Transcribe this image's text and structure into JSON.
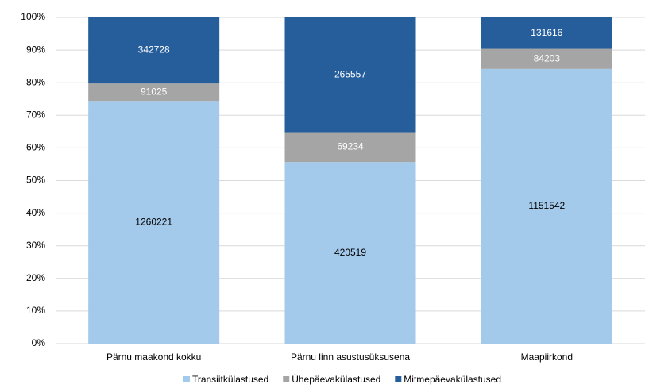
{
  "chart_data": {
    "type": "bar",
    "stacking": "percent",
    "categories": [
      "Pärnu maakond kokku",
      "Pärnu linn asustusüksusena",
      "Maapiirkond"
    ],
    "series": [
      {
        "name": "Transiitkülastused",
        "color": "#a3c9eb",
        "label_color": "#000000",
        "values": [
          1260221,
          420519,
          1151542
        ]
      },
      {
        "name": "Ühepäevakülastused",
        "color": "#a5a5a5",
        "label_color": "#ffffff",
        "values": [
          91025,
          69234,
          84203
        ]
      },
      {
        "name": "Mitmepäevakülastused",
        "color": "#255e9b",
        "label_color": "#ffffff",
        "values": [
          342728,
          265557,
          131616
        ]
      }
    ],
    "ylim": [
      0,
      100
    ],
    "yticks": [
      {
        "value": 0,
        "label": "0%"
      },
      {
        "value": 10,
        "label": "10%"
      },
      {
        "value": 20,
        "label": "20%"
      },
      {
        "value": 30,
        "label": "30%"
      },
      {
        "value": 40,
        "label": "40%"
      },
      {
        "value": 50,
        "label": "50%"
      },
      {
        "value": 60,
        "label": "60%"
      },
      {
        "value": 70,
        "label": "70%"
      },
      {
        "value": 80,
        "label": "80%"
      },
      {
        "value": 90,
        "label": "90%"
      },
      {
        "value": 100,
        "label": "100%"
      }
    ],
    "grid": true,
    "legend": "bottom"
  }
}
